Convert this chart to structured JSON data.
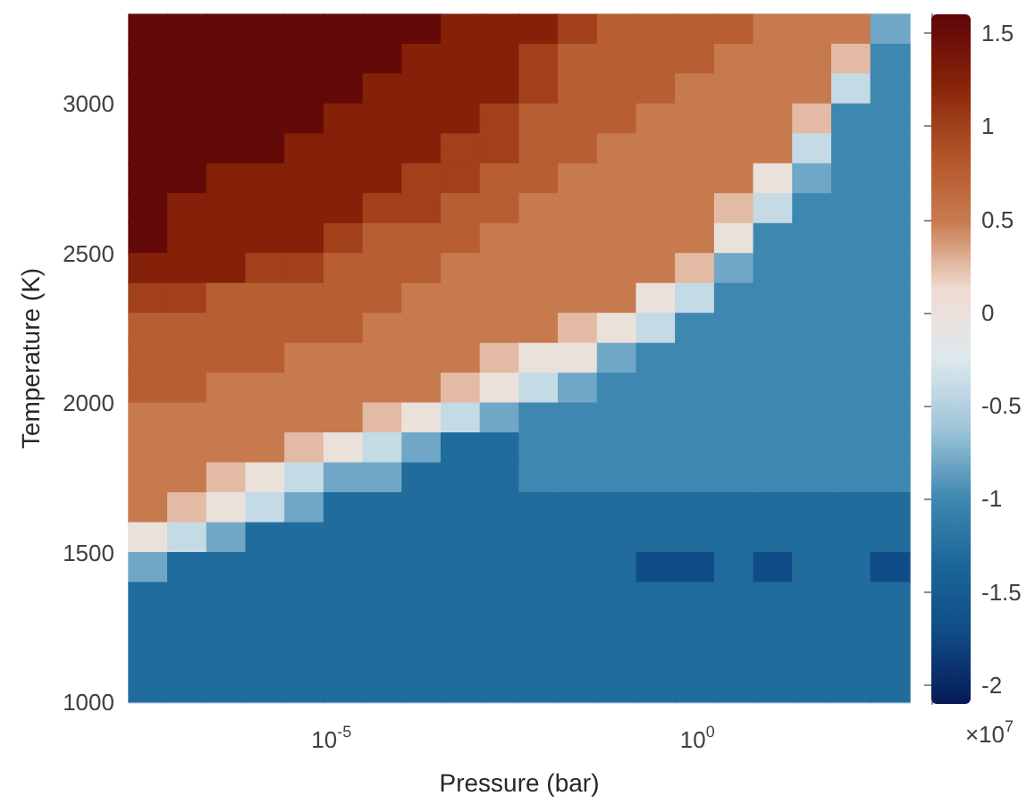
{
  "chart_data": {
    "type": "heatmap",
    "xlabel": "Pressure (bar)",
    "ylabel": "Temperature (K)",
    "log": "x",
    "xlim": [
      1.7e-08,
      800
    ],
    "xticks": [
      {
        "value": 1e-05,
        "label": "10$^{-5}$"
      },
      {
        "value": 1,
        "label": "10$^{0}$"
      }
    ],
    "ylim": [
      1000,
      3300
    ],
    "yticks": [
      1000,
      1500,
      2000,
      2500,
      3000
    ],
    "clim": [
      -2.1,
      1.6
    ],
    "cticks": [
      -2,
      -1.5,
      -1,
      -0.5,
      0,
      0.5,
      1,
      1.5
    ],
    "colors": [
      "#061a56",
      "#0f4a85",
      "#1a6699",
      "#3f88b1",
      "#9fc5da",
      "#dde8ed",
      "#f1ddd2",
      "#c87b4f",
      "#b15227",
      "#862308",
      "#5e0508"
    ],
    "annotations": [
      "×10$^{7}$"
    ],
    "cells": [
      [
        1.55,
        1.55,
        1.55,
        1.55,
        1.55,
        1.55,
        1.55,
        1.55,
        1.25,
        1.25,
        1.25,
        1.0,
        0.75,
        0.75,
        0.75,
        0.75,
        0.5,
        0.5,
        0.5,
        -0.8
      ],
      [
        1.55,
        1.55,
        1.55,
        1.55,
        1.55,
        1.55,
        1.55,
        1.25,
        1.25,
        1.25,
        1.0,
        0.75,
        0.75,
        0.75,
        0.75,
        0.5,
        0.5,
        0.5,
        0.25,
        -1
      ],
      [
        1.55,
        1.55,
        1.55,
        1.55,
        1.55,
        1.55,
        1.25,
        1.25,
        1.25,
        1.25,
        1.0,
        0.75,
        0.75,
        0.75,
        0.5,
        0.5,
        0.5,
        0.5,
        -0.4,
        -1
      ],
      [
        1.55,
        1.55,
        1.55,
        1.55,
        1.55,
        1.25,
        1.25,
        1.25,
        1.25,
        1.0,
        0.75,
        0.75,
        0.75,
        0.5,
        0.5,
        0.5,
        0.5,
        0.25,
        -1,
        -1
      ],
      [
        1.55,
        1.55,
        1.55,
        1.55,
        1.25,
        1.25,
        1.25,
        1.25,
        1.0,
        1.0,
        0.75,
        0.75,
        0.5,
        0.5,
        0.5,
        0.5,
        0.5,
        -0.4,
        -1,
        -1
      ],
      [
        1.55,
        1.55,
        1.25,
        1.25,
        1.25,
        1.25,
        1.25,
        1.0,
        1.0,
        0.75,
        0.75,
        0.5,
        0.5,
        0.5,
        0.5,
        0.5,
        0,
        -0.8,
        -1,
        -1
      ],
      [
        1.55,
        1.25,
        1.25,
        1.25,
        1.25,
        1.25,
        1.0,
        1.0,
        0.75,
        0.75,
        0.5,
        0.5,
        0.5,
        0.5,
        0.5,
        0.25,
        -0.4,
        -1,
        -1,
        -1
      ],
      [
        1.55,
        1.25,
        1.25,
        1.25,
        1.25,
        1.0,
        0.75,
        0.75,
        0.75,
        0.5,
        0.5,
        0.5,
        0.5,
        0.5,
        0.5,
        0,
        -1,
        -1,
        -1,
        -1
      ],
      [
        1.25,
        1.25,
        1.25,
        1.0,
        1.0,
        0.75,
        0.75,
        0.75,
        0.5,
        0.5,
        0.5,
        0.5,
        0.5,
        0.5,
        0.25,
        -0.8,
        -1,
        -1,
        -1,
        -1
      ],
      [
        1.0,
        1.0,
        0.75,
        0.75,
        0.75,
        0.75,
        0.75,
        0.5,
        0.5,
        0.5,
        0.5,
        0.5,
        0.5,
        0,
        -0.4,
        -1,
        -1,
        -1,
        -1,
        -1
      ],
      [
        0.75,
        0.75,
        0.75,
        0.75,
        0.75,
        0.75,
        0.5,
        0.5,
        0.5,
        0.5,
        0.5,
        0.25,
        0,
        -0.4,
        -1,
        -1,
        -1,
        -1,
        -1,
        -1
      ],
      [
        0.75,
        0.75,
        0.75,
        0.75,
        0.5,
        0.5,
        0.5,
        0.5,
        0.5,
        0.25,
        0,
        0,
        -0.8,
        -1,
        -1,
        -1,
        -1,
        -1,
        -1,
        -1
      ],
      [
        0.75,
        0.75,
        0.5,
        0.5,
        0.5,
        0.5,
        0.5,
        0.5,
        0.25,
        0,
        -0.4,
        -0.8,
        -1,
        -1,
        -1,
        -1,
        -1,
        -1,
        -1,
        -1
      ],
      [
        0.5,
        0.5,
        0.5,
        0.5,
        0.5,
        0.5,
        0.25,
        0,
        -0.4,
        -0.8,
        -1,
        -1,
        -1,
        -1,
        -1,
        -1,
        -1,
        -1,
        -1,
        -1
      ],
      [
        0.5,
        0.5,
        0.5,
        0.5,
        0.25,
        0,
        -0.4,
        -0.8,
        -1.3,
        -1.3,
        -1,
        -1,
        -1,
        -1,
        -1,
        -1,
        -1,
        -1,
        -1,
        -1
      ],
      [
        0.5,
        0.5,
        0.25,
        0,
        -0.4,
        -0.8,
        -0.8,
        -1.3,
        -1.3,
        -1.3,
        -1,
        -1,
        -1,
        -1,
        -1,
        -1,
        -1,
        -1,
        -1,
        -1
      ],
      [
        0.5,
        0.25,
        0,
        -0.4,
        -0.8,
        -1.3,
        -1.3,
        -1.3,
        -1.3,
        -1.3,
        -1.3,
        -1.3,
        -1.3,
        -1.3,
        -1.3,
        -1.3,
        -1.3,
        -1.3,
        -1.3,
        -1.3
      ],
      [
        0,
        -0.4,
        -0.8,
        -1.3,
        -1.3,
        -1.3,
        -1.3,
        -1.3,
        -1.3,
        -1.3,
        -1.3,
        -1.3,
        -1.3,
        -1.3,
        -1.3,
        -1.3,
        -1.3,
        -1.3,
        -1.3,
        -1.3
      ],
      [
        -0.8,
        -1.3,
        -1.3,
        -1.3,
        -1.3,
        -1.3,
        -1.3,
        -1.3,
        -1.3,
        -1.3,
        -1.3,
        -1.3,
        -1.3,
        -1.7,
        -1.7,
        -1.3,
        -1.7,
        -1.3,
        -1.3,
        -1.7
      ],
      [
        -1.3,
        -1.3,
        -1.3,
        -1.3,
        -1.3,
        -1.3,
        -1.3,
        -1.3,
        -1.3,
        -1.3,
        -1.3,
        -1.3,
        -1.3,
        -1.3,
        -1.3,
        -1.3,
        -1.3,
        -1.3,
        -1.3,
        -1.3
      ],
      [
        -1.3,
        -1.3,
        -1.3,
        -1.3,
        -1.3,
        -1.3,
        -1.3,
        -1.3,
        -1.3,
        -1.3,
        -1.3,
        -1.3,
        -1.3,
        -1.3,
        -1.3,
        -1.3,
        -1.3,
        -1.3,
        -1.3,
        -1.3
      ],
      [
        -1.3,
        -1.3,
        -1.3,
        -1.3,
        -1.3,
        -1.3,
        -1.3,
        -1.3,
        -1.3,
        -1.3,
        -1.3,
        -1.3,
        -1.3,
        -1.3,
        -1.3,
        -1.3,
        -1.3,
        -1.3,
        -1.3,
        -1.3
      ],
      [
        -1.3,
        -1.3,
        -1.3,
        -1.3,
        -1.3,
        -1.3,
        -1.3,
        -1.3,
        -1.3,
        -1.3,
        -1.3,
        -1.3,
        -1.3,
        -1.3,
        -1.3,
        -1.3,
        -1.3,
        -1.3,
        -1.3,
        -1.3
      ]
    ]
  }
}
